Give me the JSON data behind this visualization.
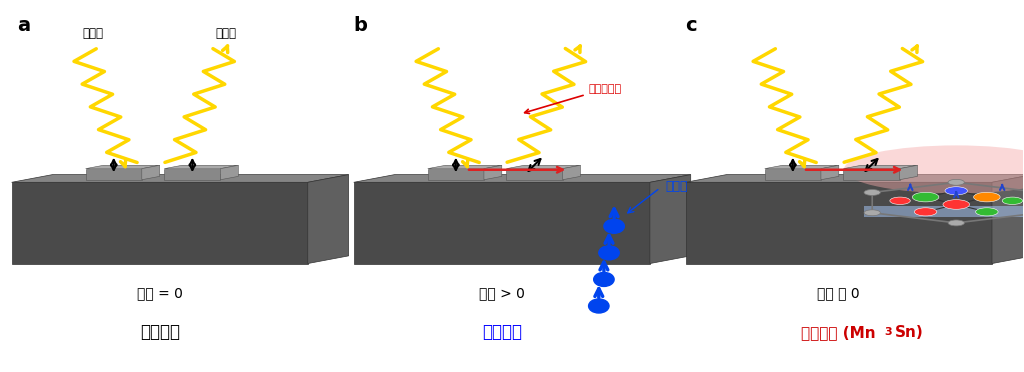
{
  "background_color": "#ffffff",
  "panel_a": {
    "label": "a",
    "text_magnetization": "磁化 = 0",
    "text_material": "常磁性体",
    "material_color": "#000000",
    "annotation_incident": "入射光",
    "annotation_reflected": "反射光"
  },
  "panel_b": {
    "label": "b",
    "text_magnetization": "磁化 > 0",
    "text_material": "強磁性体",
    "material_color": "#0000ff",
    "annotation_kerr": "カー回転角",
    "annotation_spin": "スピン"
  },
  "panel_c": {
    "label": "c",
    "text_magnetization": "磁化 〜 0",
    "text_material": "反磁性体 (Mn",
    "text_material_sub": "3",
    "text_material_end": "Sn)",
    "material_color": "#cc0000"
  },
  "light_color": "#FFD700",
  "platform_top": "#858585",
  "platform_front": "#4a4a4a",
  "platform_side": "#606060",
  "block_top": "#aaaaaa",
  "block_front": "#888888",
  "block_side": "#999999"
}
